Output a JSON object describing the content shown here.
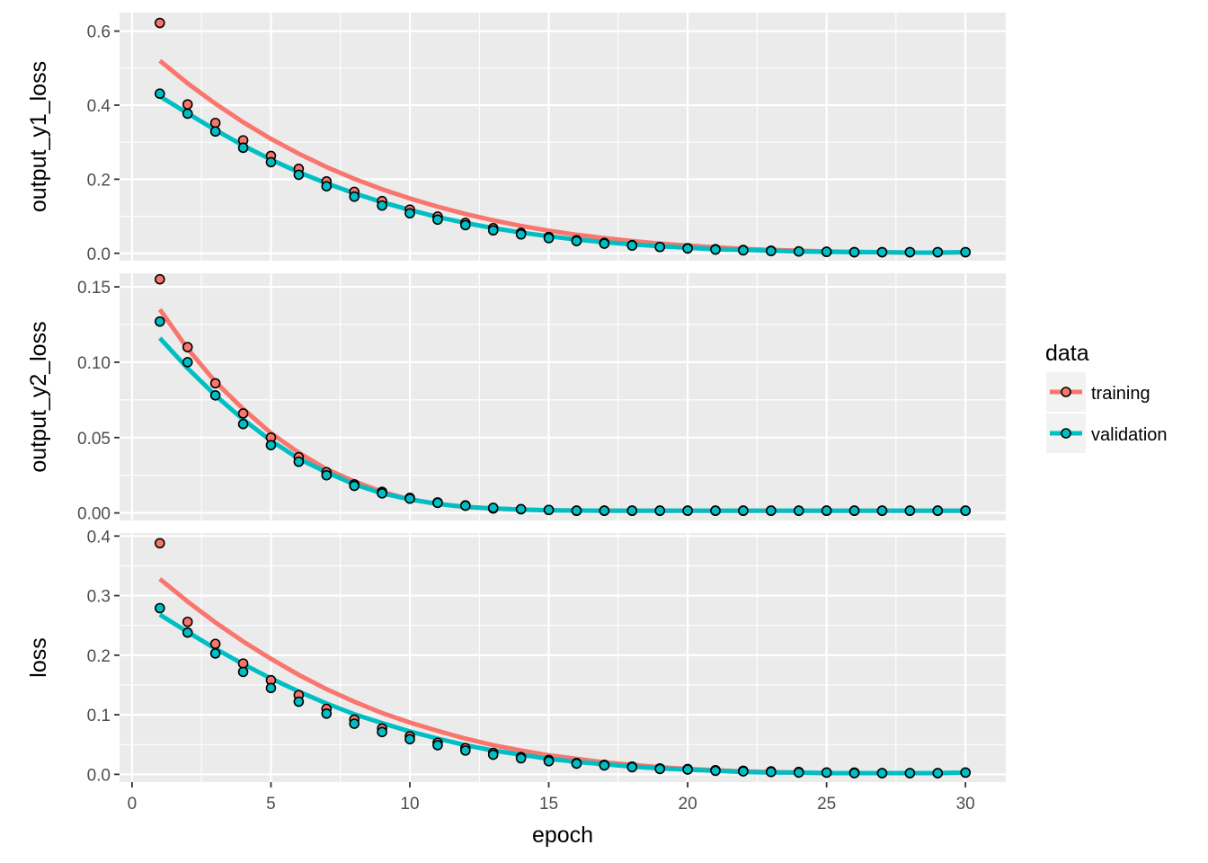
{
  "chart_data": {
    "type": "line",
    "facet": "rows",
    "grid": true,
    "legend_position": "right",
    "xlabel": "epoch",
    "x_ticks": [
      "0",
      "5",
      "10",
      "15",
      "20",
      "25",
      "30"
    ],
    "xlim": [
      -0.45,
      31.45
    ],
    "x": [
      1,
      2,
      3,
      4,
      5,
      6,
      7,
      8,
      9,
      10,
      11,
      12,
      13,
      14,
      15,
      16,
      17,
      18,
      19,
      20,
      21,
      22,
      23,
      24,
      25,
      26,
      27,
      28,
      29,
      30
    ],
    "legend": {
      "title": "data",
      "entries": [
        {
          "name": "training",
          "color": "#f8766d"
        },
        {
          "name": "validation",
          "color": "#00bfc4"
        }
      ]
    },
    "panels": [
      {
        "ylabel": "output_y1_loss",
        "ylim": [
          -0.02,
          0.65
        ],
        "y_ticks": [
          {
            "value": 0.0,
            "label": "0.0"
          },
          {
            "value": 0.2,
            "label": "0.2"
          },
          {
            "value": 0.4,
            "label": "0.4"
          },
          {
            "value": 0.6,
            "label": "0.6"
          }
        ],
        "series": [
          {
            "name": "training",
            "points": [
              0.622,
              0.402,
              0.352,
              0.305,
              0.263,
              0.228,
              0.194,
              0.166,
              0.141,
              0.118,
              0.099,
              0.082,
              0.068,
              0.055,
              0.044,
              0.035,
              0.028,
              0.022,
              0.017,
              0.014,
              0.011,
              0.009,
              0.007,
              0.005,
              0.004,
              0.003,
              0.003,
              0.003,
              0.003,
              0.003
            ],
            "smooth": [
              0.52,
              0.459,
              0.404,
              0.354,
              0.309,
              0.269,
              0.233,
              0.201,
              0.173,
              0.148,
              0.126,
              0.106,
              0.089,
              0.074,
              0.061,
              0.05,
              0.041,
              0.033,
              0.026,
              0.021,
              0.016,
              0.012,
              0.009,
              0.007,
              0.005,
              0.004,
              0.003,
              0.002,
              0.002,
              0.003
            ]
          },
          {
            "name": "validation",
            "points": [
              0.431,
              0.377,
              0.329,
              0.285,
              0.246,
              0.212,
              0.181,
              0.153,
              0.129,
              0.108,
              0.091,
              0.076,
              0.062,
              0.051,
              0.041,
              0.033,
              0.026,
              0.021,
              0.017,
              0.013,
              0.01,
              0.008,
              0.006,
              0.005,
              0.004,
              0.003,
              0.003,
              0.003,
              0.003,
              0.003
            ],
            "smooth": [
              0.424,
              0.378,
              0.333,
              0.291,
              0.253,
              0.219,
              0.189,
              0.162,
              0.138,
              0.117,
              0.098,
              0.082,
              0.068,
              0.056,
              0.046,
              0.037,
              0.03,
              0.024,
              0.019,
              0.015,
              0.011,
              0.009,
              0.007,
              0.005,
              0.004,
              0.003,
              0.003,
              0.002,
              0.002,
              0.003
            ]
          }
        ]
      },
      {
        "ylabel": "output_y2_loss",
        "ylim": [
          -0.005,
          0.159
        ],
        "y_ticks": [
          {
            "value": 0.0,
            "label": "0.00"
          },
          {
            "value": 0.05,
            "label": "0.05"
          },
          {
            "value": 0.1,
            "label": "0.10"
          },
          {
            "value": 0.15,
            "label": "0.15"
          }
        ],
        "series": [
          {
            "name": "training",
            "points": [
              0.155,
              0.11,
              0.086,
              0.066,
              0.05,
              0.037,
              0.027,
              0.019,
              0.014,
              0.01,
              0.007,
              0.005,
              0.003,
              0.0025,
              0.002,
              0.0015,
              0.0015,
              0.0015,
              0.0015,
              0.0015,
              0.0015,
              0.0015,
              0.0015,
              0.0015,
              0.0015,
              0.0015,
              0.0015,
              0.0015,
              0.0015,
              0.0015
            ],
            "smooth": [
              0.135,
              0.109,
              0.087,
              0.069,
              0.053,
              0.04,
              0.029,
              0.021,
              0.014,
              0.009,
              0.006,
              0.004,
              0.003,
              0.0022,
              0.0018,
              0.0016,
              0.0015,
              0.0015,
              0.0015,
              0.0015,
              0.0015,
              0.0015,
              0.0015,
              0.0015,
              0.0015,
              0.0015,
              0.0015,
              0.0015,
              0.0015,
              0.0015
            ]
          },
          {
            "name": "validation",
            "points": [
              0.127,
              0.1,
              0.078,
              0.059,
              0.045,
              0.034,
              0.025,
              0.018,
              0.013,
              0.0095,
              0.0067,
              0.0048,
              0.0034,
              0.0025,
              0.002,
              0.0015,
              0.0015,
              0.0015,
              0.0015,
              0.0015,
              0.0015,
              0.0015,
              0.0015,
              0.0015,
              0.0015,
              0.0015,
              0.0015,
              0.0015,
              0.0015,
              0.0015
            ],
            "smooth": [
              0.116,
              0.096,
              0.078,
              0.062,
              0.048,
              0.036,
              0.027,
              0.019,
              0.013,
              0.009,
              0.006,
              0.004,
              0.003,
              0.0022,
              0.0018,
              0.0016,
              0.0015,
              0.0015,
              0.0015,
              0.0015,
              0.0015,
              0.0015,
              0.0015,
              0.0015,
              0.0015,
              0.0015,
              0.0015,
              0.0015,
              0.0015,
              0.0015
            ]
          }
        ]
      },
      {
        "ylabel": "loss",
        "ylim": [
          -0.013,
          0.405
        ],
        "y_ticks": [
          {
            "value": 0.0,
            "label": "0.0"
          },
          {
            "value": 0.1,
            "label": "0.1"
          },
          {
            "value": 0.2,
            "label": "0.2"
          },
          {
            "value": 0.3,
            "label": "0.3"
          },
          {
            "value": 0.4,
            "label": "0.4"
          }
        ],
        "series": [
          {
            "name": "training",
            "points": [
              0.388,
              0.256,
              0.219,
              0.186,
              0.158,
              0.133,
              0.11,
              0.092,
              0.077,
              0.064,
              0.053,
              0.044,
              0.036,
              0.029,
              0.024,
              0.019,
              0.016,
              0.013,
              0.01,
              0.009,
              0.007,
              0.006,
              0.005,
              0.004,
              0.003,
              0.003,
              0.002,
              0.002,
              0.002,
              0.003
            ],
            "smooth": [
              0.328,
              0.29,
              0.255,
              0.223,
              0.194,
              0.167,
              0.143,
              0.122,
              0.103,
              0.087,
              0.073,
              0.06,
              0.049,
              0.04,
              0.032,
              0.026,
              0.02,
              0.016,
              0.012,
              0.009,
              0.007,
              0.005,
              0.004,
              0.003,
              0.002,
              0.002,
              0.002,
              0.002,
              0.002,
              0.003
            ]
          },
          {
            "name": "validation",
            "points": [
              0.279,
              0.238,
              0.203,
              0.172,
              0.145,
              0.122,
              0.102,
              0.085,
              0.071,
              0.059,
              0.049,
              0.04,
              0.033,
              0.027,
              0.022,
              0.018,
              0.015,
              0.012,
              0.009,
              0.008,
              0.006,
              0.005,
              0.004,
              0.003,
              0.003,
              0.002,
              0.002,
              0.002,
              0.002,
              0.003
            ],
            "smooth": [
              0.268,
              0.239,
              0.211,
              0.185,
              0.161,
              0.139,
              0.119,
              0.101,
              0.086,
              0.072,
              0.06,
              0.049,
              0.04,
              0.033,
              0.026,
              0.021,
              0.017,
              0.013,
              0.01,
              0.008,
              0.006,
              0.004,
              0.003,
              0.003,
              0.002,
              0.002,
              0.002,
              0.002,
              0.002,
              0.003
            ]
          }
        ]
      }
    ]
  }
}
